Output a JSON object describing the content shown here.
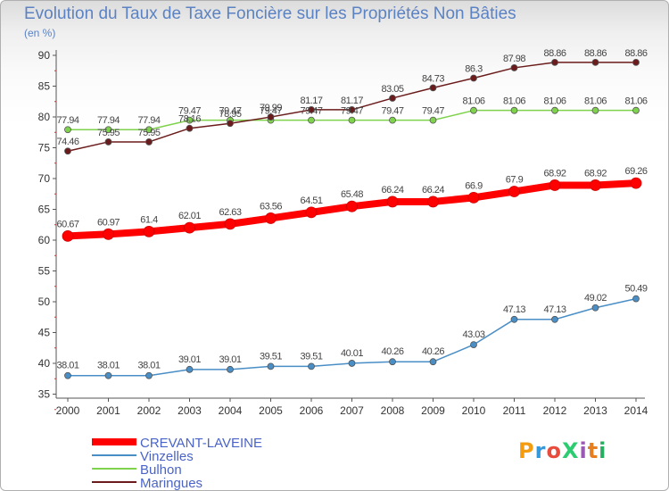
{
  "header": {
    "title": "Evolution du Taux de Taxe Foncière sur les Propriétés Non Bâties",
    "unit": "(en %)"
  },
  "logo": {
    "text": "ProXiti",
    "colors": [
      "#f39c12",
      "#3498db",
      "#e74c3c",
      "#2ecc71",
      "#9b59b6",
      "#e67e22",
      "#27ae60"
    ]
  },
  "chart_data": {
    "type": "line",
    "title": "Evolution du Taux de Taxe Foncière sur les Propriétés Non Bâties",
    "ylabel": "(en %)",
    "xlabel": "",
    "x": [
      "2000",
      "2001",
      "2002",
      "2003",
      "2004",
      "2005",
      "2006",
      "2007",
      "2008",
      "2009",
      "2010",
      "2011",
      "2012",
      "2013",
      "2014"
    ],
    "ylim": [
      35,
      90
    ],
    "yticks": [
      35,
      40,
      45,
      50,
      55,
      60,
      65,
      70,
      75,
      80,
      85,
      90
    ],
    "grid": false,
    "legend": "bottom-left",
    "series": [
      {
        "name": "CREVANT-LAVEINE",
        "color": "#ff0000",
        "values": [
          60.67,
          60.97,
          61.4,
          62.01,
          62.63,
          63.56,
          64.51,
          65.48,
          66.24,
          66.24,
          66.9,
          67.9,
          68.92,
          68.92,
          69.26
        ],
        "labels": [
          "60.67",
          "60.97",
          "61.4",
          "62.01",
          "62.63",
          "63.56",
          "64.51",
          "65.48",
          "66.24",
          "66.24",
          "66.9",
          "67.9",
          "68.92",
          "68.92",
          "69.26"
        ]
      },
      {
        "name": "Vinzelles",
        "color": "#4a8ec6",
        "values": [
          38.01,
          38.01,
          38.01,
          39.01,
          39.01,
          39.51,
          39.51,
          40.01,
          40.26,
          40.26,
          43.03,
          47.13,
          47.13,
          49.02,
          50.49
        ],
        "labels": [
          "38.01",
          "38.01",
          "38.01",
          "39.01",
          "39.01",
          "39.51",
          "39.51",
          "40.01",
          "40.26",
          "40.26",
          "43.03",
          "47.13",
          "47.13",
          "49.02",
          "50.49"
        ]
      },
      {
        "name": "Bulhon",
        "color": "#7fd24c",
        "values": [
          77.94,
          77.94,
          77.94,
          79.47,
          79.47,
          79.47,
          79.47,
          79.47,
          79.47,
          79.47,
          81.06,
          81.06,
          81.06,
          81.06,
          81.06
        ],
        "labels": [
          "77.94",
          "77.94",
          "77.94",
          "79.47",
          "79.47",
          "79.47",
          "79.47",
          "79.47",
          "79.47",
          "79.47",
          "81.06",
          "81.06",
          "81.06",
          "81.06",
          "81.06"
        ]
      },
      {
        "name": "Maringues",
        "color": "#6b1b1b",
        "values": [
          74.46,
          75.95,
          75.95,
          78.16,
          78.95,
          79.99,
          81.17,
          81.17,
          83.05,
          84.73,
          86.3,
          87.98,
          88.86,
          88.86,
          88.86
        ],
        "labels": [
          "74.46",
          "75.95",
          "75.95",
          "78.16",
          "78.95",
          "79.99",
          "81.17",
          "81.17",
          "83.05",
          "84.73",
          "86.3",
          "87.98",
          "88.86",
          "88.86",
          "88.86"
        ]
      }
    ]
  }
}
